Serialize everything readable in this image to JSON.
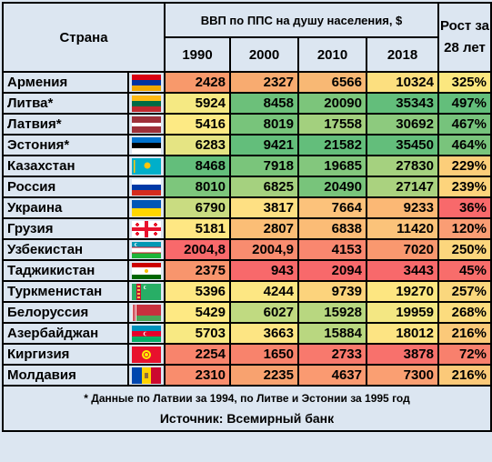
{
  "header": {
    "country_label": "Страна",
    "gdp_label": "ВВП по ППС на душу населения, $",
    "years": [
      "1990",
      "2000",
      "2010",
      "2018"
    ],
    "growth_label": "Рост за 28 лет"
  },
  "rows": [
    {
      "name": "Армения",
      "flag": "armenia-flag",
      "v1990": "2428",
      "v2000": "2327",
      "v2010": "6566",
      "v2018": "10324",
      "growth": "325%",
      "colors": [
        "#f8996b",
        "#f8ab70",
        "#f8b874",
        "#fcdf7f",
        "#fbe77f"
      ]
    },
    {
      "name": "Литва*",
      "flag": "lithuania-flag",
      "v1990": "5924",
      "v2000": "8458",
      "v2010": "20090",
      "v2018": "35343",
      "growth": "497%",
      "colors": [
        "#f5e983",
        "#6cc07a",
        "#7cc57b",
        "#63be7b",
        "#63be7b"
      ]
    },
    {
      "name": "Латвия*",
      "flag": "latvia-flag",
      "v1990": "5416",
      "v2000": "8019",
      "v2010": "17558",
      "v2018": "30692",
      "growth": "467%",
      "colors": [
        "#fdea84",
        "#78c47b",
        "#a3d07e",
        "#8dca7e",
        "#76c37c"
      ]
    },
    {
      "name": "Эстония*",
      "flag": "estonia-flag",
      "v1990": "6283",
      "v2000": "9421",
      "v2010": "21582",
      "v2018": "35450",
      "growth": "464%",
      "colors": [
        "#e5e483",
        "#63be7b",
        "#63be7b",
        "#63be7b",
        "#79c47c"
      ]
    },
    {
      "name": "Казахстан",
      "flag": "kazakhstan-flag",
      "v1990": "8468",
      "v2000": "7918",
      "v2010": "19685",
      "v2018": "27830",
      "growth": "229%",
      "colors": [
        "#63be7b",
        "#7ac57b",
        "#83c77d",
        "#a5d17f",
        "#fcce7a"
      ]
    },
    {
      "name": "Россия",
      "flag": "russia-flag",
      "v1990": "8010",
      "v2000": "6825",
      "v2010": "20490",
      "v2018": "27147",
      "growth": "239%",
      "colors": [
        "#7dc67c",
        "#a5d17f",
        "#78c47b",
        "#aad27f",
        "#fdd47c"
      ]
    },
    {
      "name": "Украина",
      "flag": "ukraine-flag",
      "v1990": "6790",
      "v2000": "3817",
      "v2010": "7664",
      "v2018": "9233",
      "growth": "36%",
      "colors": [
        "#c9dc81",
        "#fee083",
        "#fcc27b",
        "#fbb875",
        "#f8696b"
      ]
    },
    {
      "name": "Грузия",
      "flag": "georgia-flag",
      "v1990": "5181",
      "v2000": "2807",
      "v2010": "6838",
      "v2018": "11420",
      "growth": "120%",
      "colors": [
        "#fee783",
        "#fbbe76",
        "#fbbc76",
        "#fbc37a",
        "#fa9d74"
      ]
    },
    {
      "name": "Узбекистан",
      "flag": "uzbekistan-flag",
      "v1990": "2004,8",
      "v2000": "2004,9",
      "v2010": "4153",
      "v2018": "7020",
      "growth": "250%",
      "colors": [
        "#f8696b",
        "#f88c6f",
        "#f9876f",
        "#f9986f",
        "#fcd67d"
      ]
    },
    {
      "name": "Таджикистан",
      "flag": "tajikistan-flag",
      "v1990": "2375",
      "v2000": "943",
      "v2010": "2094",
      "v2018": "3443",
      "growth": "45%",
      "colors": [
        "#f8956d",
        "#f8696b",
        "#f8696b",
        "#f8696b",
        "#f86d6b"
      ]
    },
    {
      "name": "Туркменистан",
      "flag": "turkmenistan-flag",
      "v1990": "5396",
      "v2000": "4244",
      "v2010": "9739",
      "v2018": "19270",
      "growth": "257%",
      "colors": [
        "#fee783",
        "#fde783",
        "#fcd37c",
        "#fde681",
        "#fad77d"
      ]
    },
    {
      "name": "Белоруссия",
      "flag": "belarus-flag",
      "v1990": "5429",
      "v2000": "6027",
      "v2010": "15928",
      "v2018": "19959",
      "growth": "268%",
      "colors": [
        "#fee983",
        "#c0da81",
        "#b8d780",
        "#f3e783",
        "#fcdc7e"
      ]
    },
    {
      "name": "Азербайджан",
      "flag": "azerbaijan-flag",
      "v1990": "5703",
      "v2000": "3663",
      "v2010": "15884",
      "v2018": "18012",
      "growth": "216%",
      "colors": [
        "#f8e983",
        "#fde583",
        "#b9d780",
        "#fde483",
        "#fbc979"
      ]
    },
    {
      "name": "Киргизия",
      "flag": "kyrgyzstan-flag",
      "v1990": "2254",
      "v2000": "1650",
      "v2010": "2733",
      "v2018": "3878",
      "growth": "72%",
      "colors": [
        "#f8846c",
        "#f8836c",
        "#f8796d",
        "#f8716c",
        "#f8806d"
      ]
    },
    {
      "name": "Молдавия",
      "flag": "moldova-flag",
      "v1990": "2310",
      "v2000": "2235",
      "v2010": "4637",
      "v2018": "7300",
      "growth": "216%",
      "colors": [
        "#f98d6d",
        "#f8a26f",
        "#fa9a71",
        "#fa9f72",
        "#fbc979"
      ]
    }
  ],
  "footer": {
    "note": "* Данные по Латвии за 1994, по Литве и Эстонии за 1995 год",
    "source": "Источник: Всемирный банк"
  }
}
